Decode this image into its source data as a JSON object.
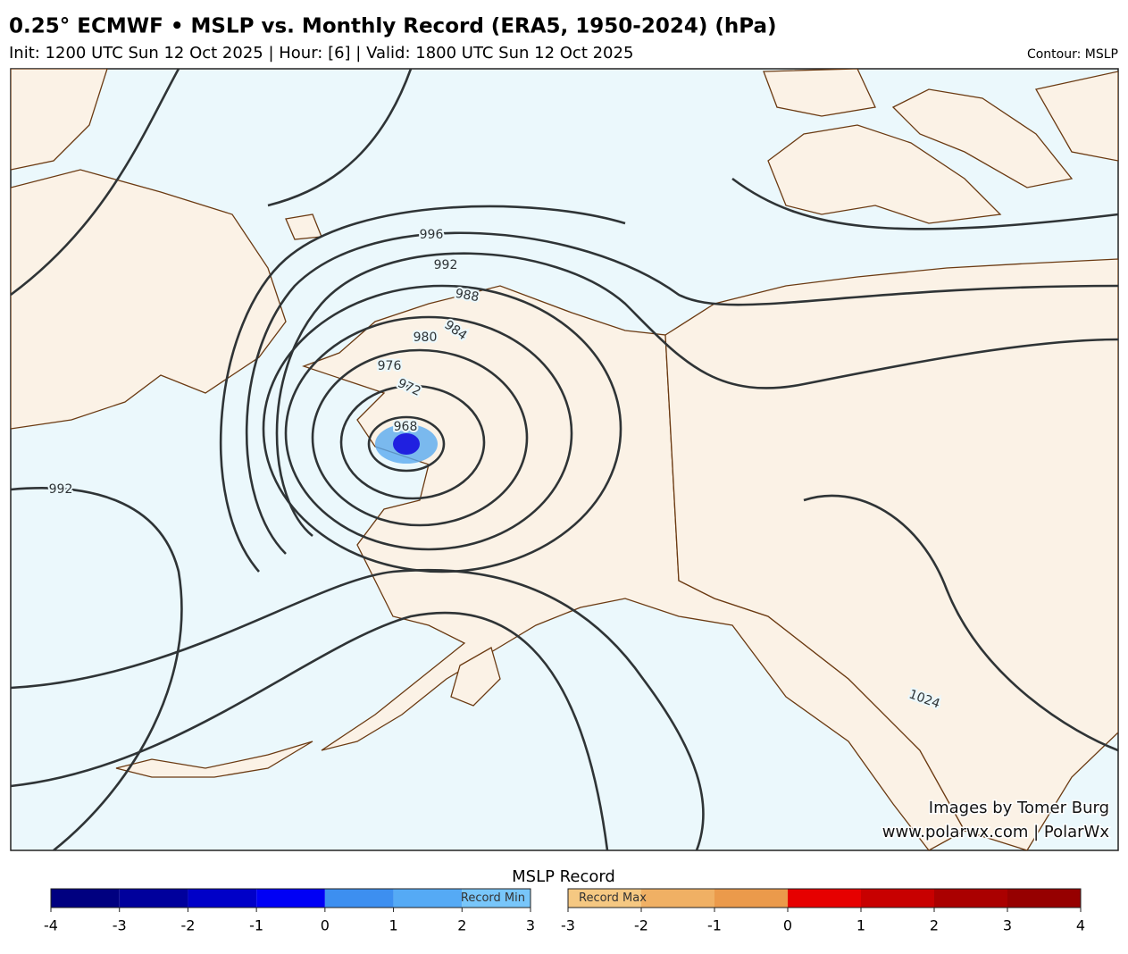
{
  "header": {
    "title": "0.25° ECMWF • MSLP vs. Monthly Record (ERA5, 1950-2024) (hPa)",
    "subtitle": "Init: 1200 UTC Sun 12 Oct 2025 | Hour: [6] | Valid: 1800 UTC Sun 12 Oct 2025",
    "contour_note": "Contour: MSLP"
  },
  "map": {
    "contour_labels": [
      "996",
      "992",
      "988",
      "984",
      "980",
      "976",
      "972",
      "968",
      "992",
      "1024"
    ],
    "credit": "Images by Tomer Burg",
    "website": "www.polarwx.com | PolarWx"
  },
  "colorbar": {
    "title": "MSLP Record",
    "left": {
      "label": "Record Min",
      "ticks": [
        -4,
        -3,
        -2,
        -1,
        0,
        1,
        2,
        3
      ],
      "colors": [
        "#000080",
        "#00009c",
        "#0000c8",
        "#0000f5",
        "#3d8ff0",
        "#55aaf5",
        "#78c6fa"
      ]
    },
    "right": {
      "label": "Record Max",
      "ticks": [
        -3,
        -2,
        -1,
        0,
        1,
        2,
        3,
        4
      ],
      "colors": [
        "#f5c882",
        "#f0b064",
        "#eb9a4b",
        "#e60000",
        "#c80000",
        "#aa0000",
        "#960000"
      ]
    }
  }
}
